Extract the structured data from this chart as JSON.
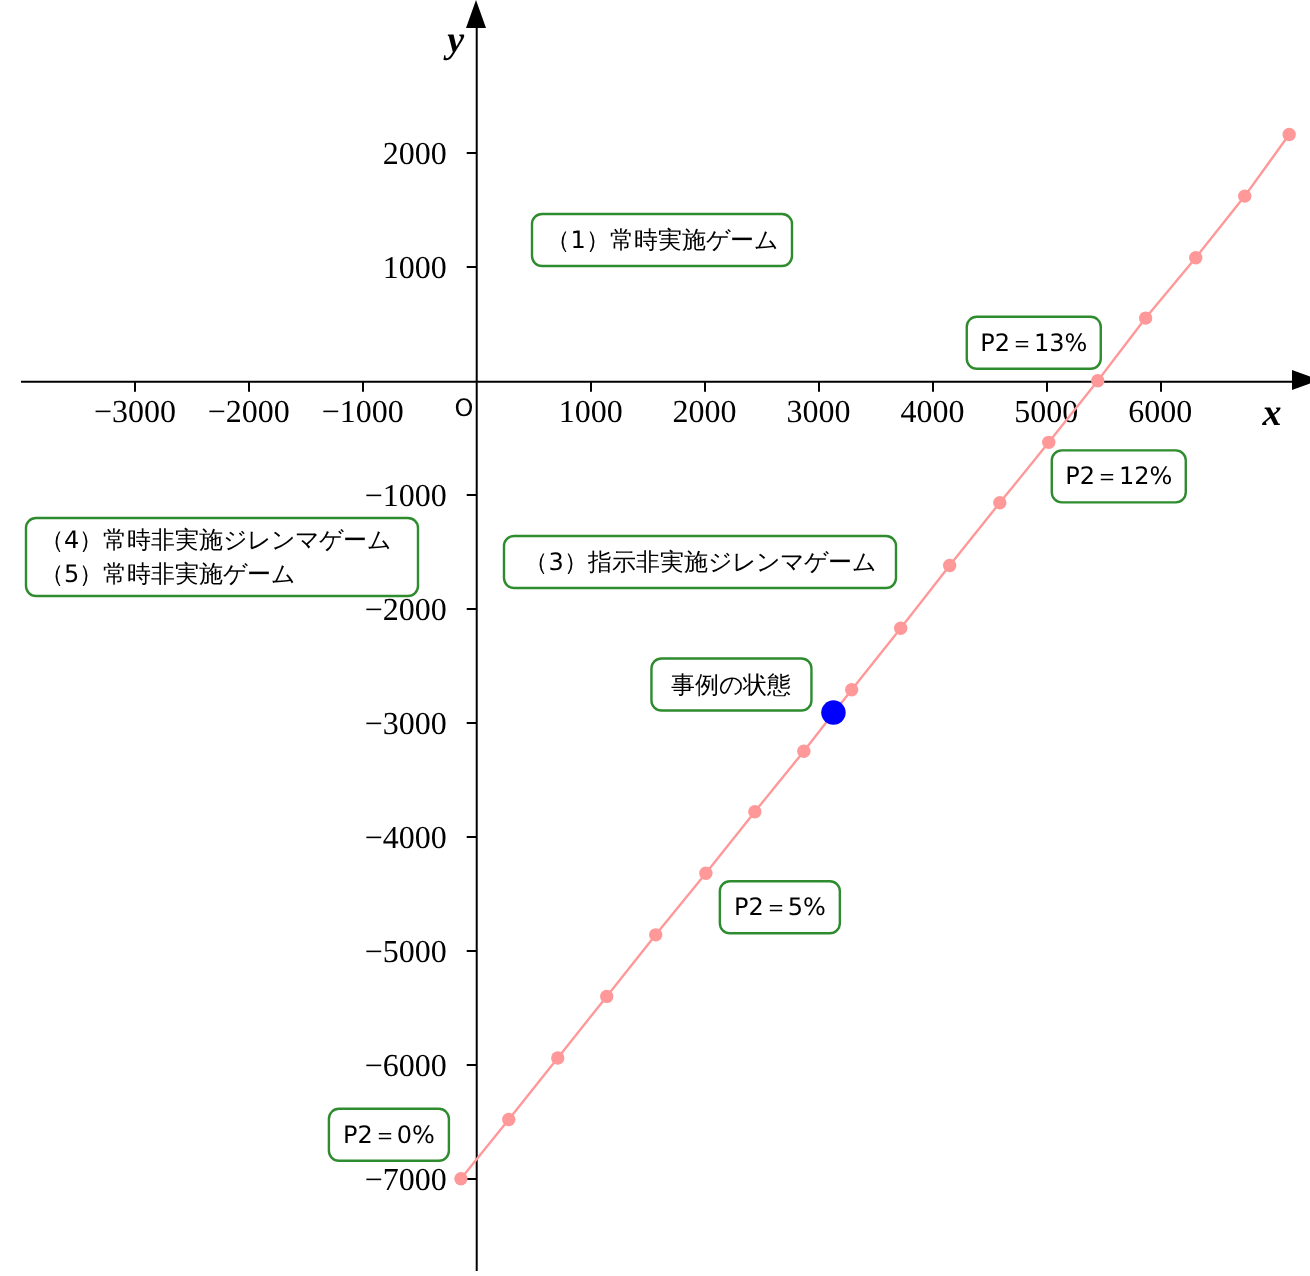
{
  "chart_data": {
    "type": "line",
    "xlabel": "x",
    "ylabel": "y",
    "xlim": [
      -4000,
      7200
    ],
    "ylim": [
      -7800,
      3200
    ],
    "xticks": [
      {
        "value": -3000,
        "label": "−3000"
      },
      {
        "value": -2000,
        "label": "−2000"
      },
      {
        "value": -1000,
        "label": "−1000"
      },
      1000,
      2000,
      3000,
      4000,
      5000,
      6000
    ],
    "yticks": [
      {
        "value": -7000,
        "label": "−7000"
      },
      {
        "value": -6000,
        "label": "−6000"
      },
      {
        "value": -5000,
        "label": "−5000"
      },
      {
        "value": -4000,
        "label": "−4000"
      },
      {
        "value": -3000,
        "label": "−3000"
      },
      {
        "value": -2000,
        "label": "−2000"
      },
      {
        "value": -1000,
        "label": "−1000"
      },
      1000,
      2000
    ],
    "grid": false,
    "legend": false,
    "series": [
      {
        "marker": "circle",
        "color": "#ff9999",
        "x": [
          -130,
          290,
          720,
          1150,
          1580,
          2020,
          2450,
          2880,
          3300,
          3730,
          4160,
          4600,
          5030,
          5460,
          5880,
          6320,
          6750,
          7140
        ],
        "values": [
          -7000,
          -6480,
          -5940,
          -5400,
          -4860,
          -4320,
          -3780,
          -3250,
          -2710,
          -2170,
          -1620,
          -1070,
          -540,
          0,
          550,
          1080,
          1620,
          2160
        ]
      },
      {
        "type": "scatter",
        "marker": "circle",
        "color": "#0000ff",
        "x": [
          3140
        ],
        "values": [
          -2910
        ]
      }
    ],
    "annotations": [
      "（1）常時実施ゲーム",
      "（3）指示非実施ジレンマゲーム",
      "（4）常時非実施ジレンマゲーム",
      "（5）常時非実施ゲーム",
      {
        "text": "P2＝13%",
        "x": 5460,
        "y": 0
      },
      {
        "text": "P2＝12%",
        "x": 5030,
        "y": -540
      },
      {
        "text": "P2＝5%",
        "x": 2020,
        "y": -4320
      },
      {
        "text": "P2＝0%",
        "x": -130,
        "y": -7000
      },
      {
        "text": "事例の状態",
        "x": 3140,
        "y": -2910
      },
      "O"
    ]
  }
}
